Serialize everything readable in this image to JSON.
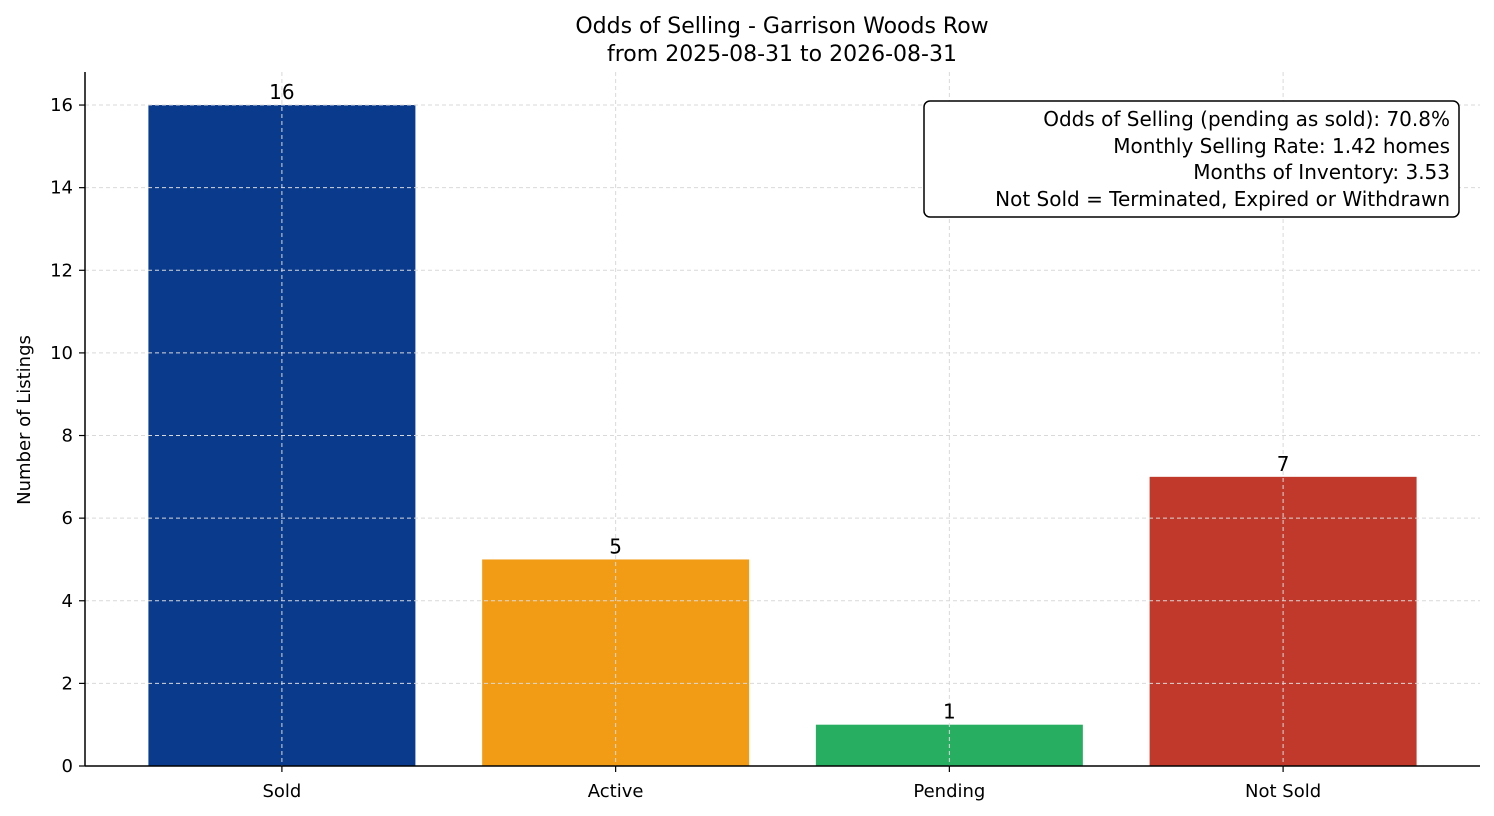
{
  "chart_data": {
    "type": "bar",
    "title_line1": "Odds of Selling - Garrison Woods Row",
    "title_line2": "from 2025-08-31 to 2026-08-31",
    "xlabel": "",
    "ylabel": "Number of Listings",
    "categories": [
      "Sold",
      "Active",
      "Pending",
      "Not Sold"
    ],
    "values": [
      16,
      5,
      1,
      7
    ],
    "bar_colors": [
      "#0a3a8c",
      "#f29c16",
      "#27ae60",
      "#c0392b"
    ],
    "ylim": [
      0,
      16.8
    ],
    "yticks": [
      0,
      2,
      4,
      6,
      8,
      10,
      12,
      14,
      16
    ],
    "grid": true,
    "info_box": {
      "lines": [
        "Odds of Selling (pending as sold): 70.8%",
        "Monthly Selling Rate: 1.42 homes",
        "Months of Inventory: 3.53",
        "Not Sold = Terminated, Expired or Withdrawn"
      ],
      "placement": "top-right"
    }
  }
}
